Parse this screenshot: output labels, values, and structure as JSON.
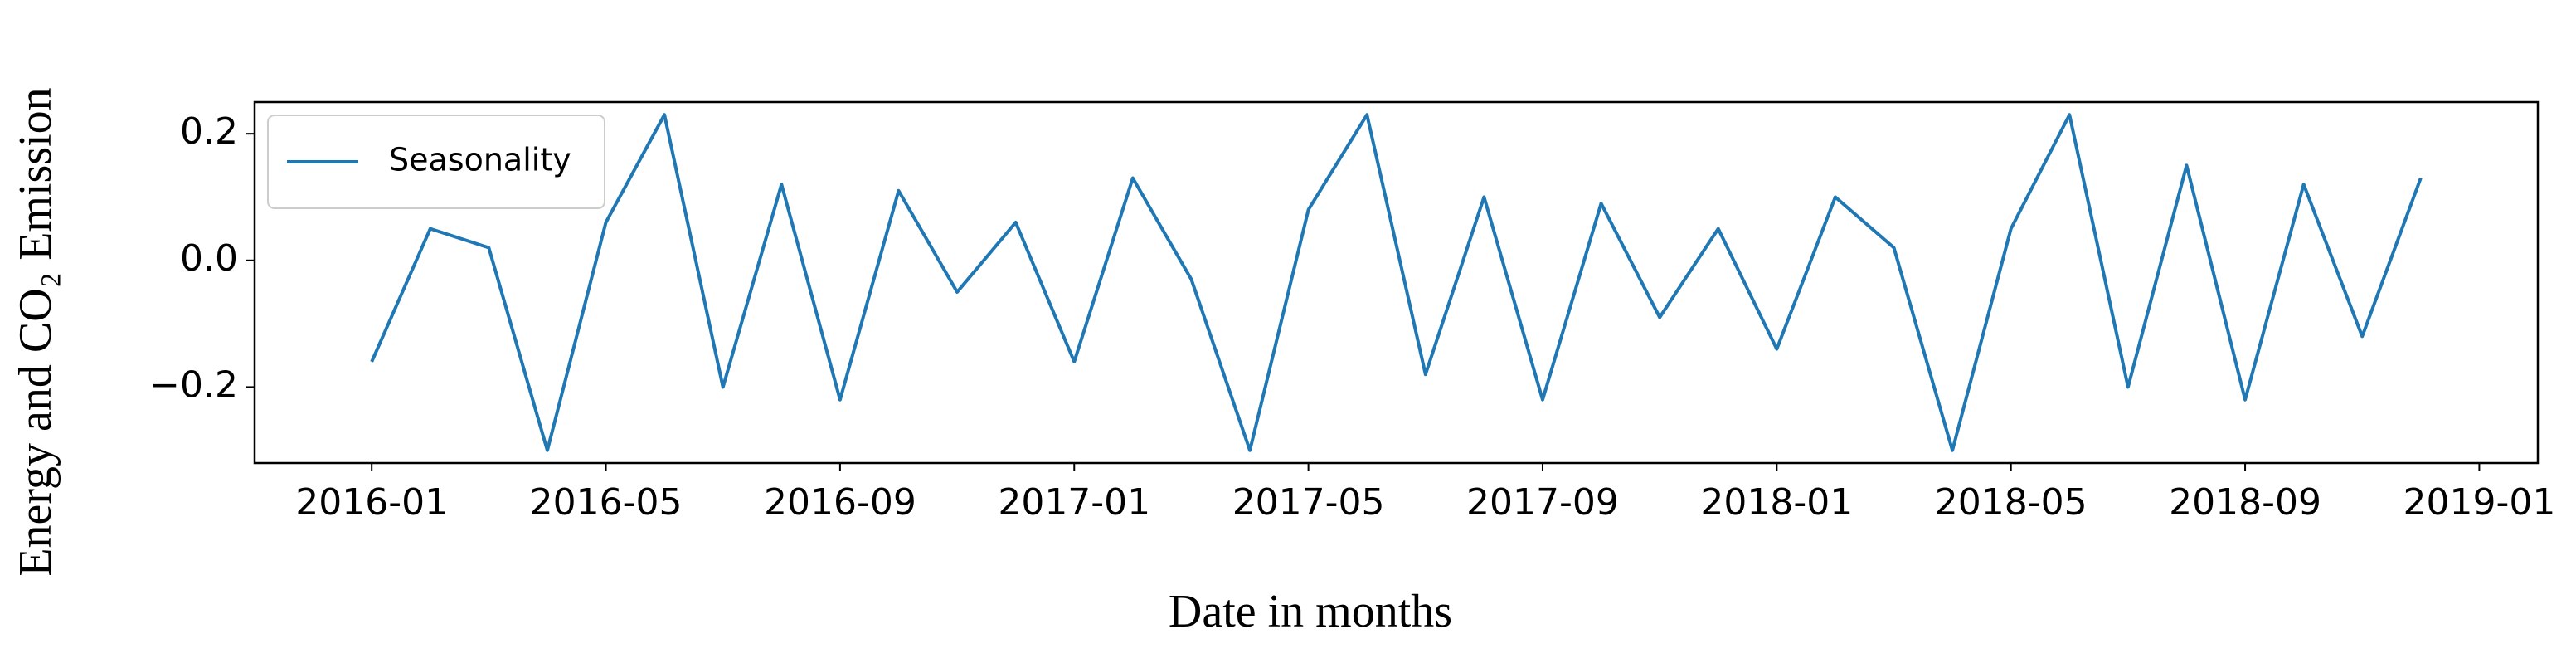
{
  "chart_data": {
    "type": "line",
    "y_label": "Energy and CO₂ Emission",
    "x_label": "Date in months",
    "x": [
      "2016-01",
      "2016-02",
      "2016-03",
      "2016-04",
      "2016-05",
      "2016-06",
      "2016-07",
      "2016-08",
      "2016-09",
      "2016-10",
      "2016-11",
      "2016-12",
      "2017-01",
      "2017-02",
      "2017-03",
      "2017-04",
      "2017-05",
      "2017-06",
      "2017-07",
      "2017-08",
      "2017-09",
      "2017-10",
      "2017-11",
      "2017-12",
      "2018-01",
      "2018-02",
      "2018-03",
      "2018-04",
      "2018-05",
      "2018-06",
      "2018-07",
      "2018-08",
      "2018-09",
      "2018-10",
      "2018-11",
      "2018-12"
    ],
    "series": [
      {
        "name": "Seasonality",
        "color": "#1f77b4",
        "values": [
          -0.16,
          0.05,
          0.02,
          -0.3,
          0.06,
          0.23,
          -0.2,
          0.12,
          -0.22,
          0.11,
          -0.05,
          0.06,
          -0.16,
          0.13,
          -0.03,
          -0.3,
          0.08,
          0.23,
          -0.18,
          0.1,
          -0.22,
          0.09,
          -0.09,
          0.05,
          -0.14,
          0.1,
          0.02,
          -0.3,
          0.05,
          0.23,
          -0.2,
          0.15,
          -0.22,
          0.12,
          -0.12,
          0.13
        ]
      }
    ],
    "xlim": [
      "2015-11",
      "2019-02"
    ],
    "xticks": [
      "2016-01",
      "2016-05",
      "2016-09",
      "2017-01",
      "2017-05",
      "2017-09",
      "2018-01",
      "2018-05",
      "2018-09",
      "2019-01"
    ],
    "ylim": [
      -0.32,
      0.25
    ],
    "yticks": [
      {
        "value": -0.2,
        "label": "−0.2"
      },
      {
        "value": 0,
        "label": "0.0"
      },
      0.2
    ],
    "legend": "upper left",
    "grid": false
  }
}
